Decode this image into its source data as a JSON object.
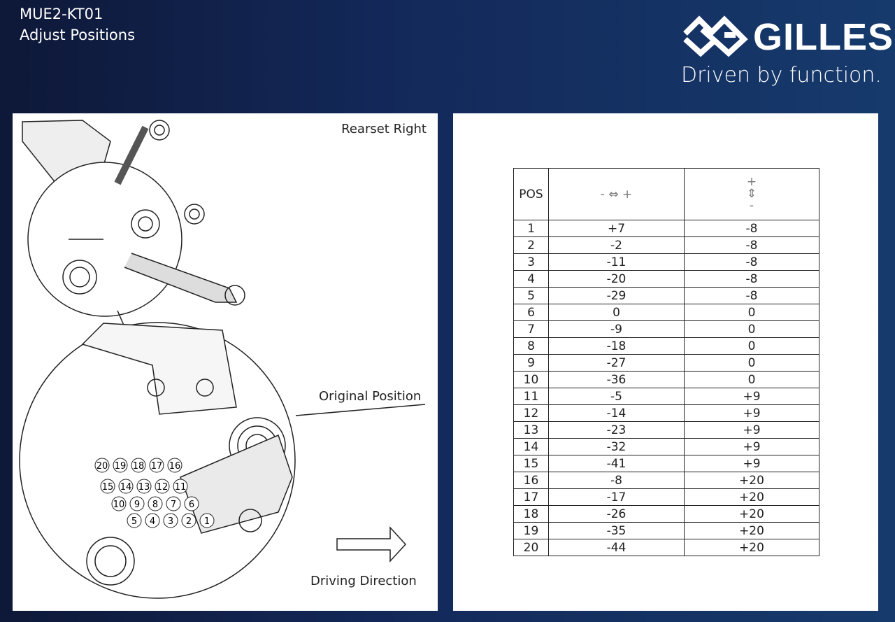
{
  "header": {
    "code": "MUE2-KT01",
    "subtitle": "Adjust Positions"
  },
  "brand": {
    "name": "GILLES",
    "tagline": "Driven by function."
  },
  "left_panel": {
    "title": "Rearset Right",
    "original_label": "Original Position",
    "direction_label": "Driving Direction",
    "positions": [
      "1",
      "2",
      "3",
      "4",
      "5",
      "6",
      "7",
      "8",
      "9",
      "10",
      "11",
      "12",
      "13",
      "14",
      "15",
      "16",
      "17",
      "18",
      "19",
      "20"
    ]
  },
  "table": {
    "headers": {
      "pos": "POS",
      "horizontal": "- ⇔ +",
      "vertical_plus": "+",
      "vertical_minus": "-"
    },
    "rows": [
      [
        "1",
        "+7",
        "-8"
      ],
      [
        "2",
        "-2",
        "-8"
      ],
      [
        "3",
        "-11",
        "-8"
      ],
      [
        "4",
        "-20",
        "-8"
      ],
      [
        "5",
        "-29",
        "-8"
      ],
      [
        "6",
        "0",
        "0"
      ],
      [
        "7",
        "-9",
        "0"
      ],
      [
        "8",
        "-18",
        "0"
      ],
      [
        "9",
        "-27",
        "0"
      ],
      [
        "10",
        "-36",
        "0"
      ],
      [
        "11",
        "-5",
        "+9"
      ],
      [
        "12",
        "-14",
        "+9"
      ],
      [
        "13",
        "-23",
        "+9"
      ],
      [
        "14",
        "-32",
        "+9"
      ],
      [
        "15",
        "-41",
        "+9"
      ],
      [
        "16",
        "-8",
        "+20"
      ],
      [
        "17",
        "-17",
        "+20"
      ],
      [
        "18",
        "-26",
        "+20"
      ],
      [
        "19",
        "-35",
        "+20"
      ],
      [
        "20",
        "-44",
        "+20"
      ]
    ]
  }
}
